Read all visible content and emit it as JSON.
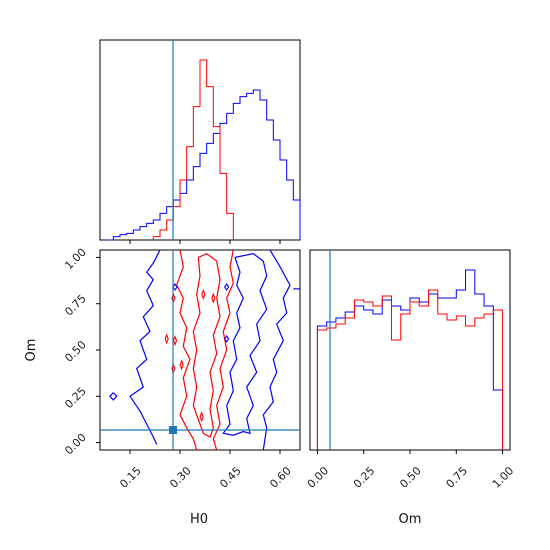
{
  "colors": {
    "series_a": "#0000ff",
    "series_b": "#ff0000",
    "truth": "#1f77b4",
    "axes": "#000000"
  },
  "chart_data": {
    "type": "corner",
    "parameters": [
      "H0",
      "Om"
    ],
    "truths": {
      "H0": 0.28,
      "Om": 0.06
    },
    "series": [
      {
        "color": "#0000ff",
        "H0_hist": {
          "edges": [
            0.08,
            0.1,
            0.12,
            0.14,
            0.16,
            0.18,
            0.2,
            0.22,
            0.24,
            0.26,
            0.28,
            0.3,
            0.32,
            0.34,
            0.36,
            0.38,
            0.4,
            0.42,
            0.44,
            0.46,
            0.48,
            0.5,
            0.52,
            0.54,
            0.56,
            0.58,
            0.6,
            0.62,
            0.64,
            0.66
          ],
          "counts": [
            0,
            0.5,
            0.8,
            1,
            1.5,
            2,
            2.5,
            3,
            4,
            5,
            6,
            7,
            9,
            11,
            13,
            14.5,
            16,
            17.5,
            19,
            20.5,
            21.5,
            22,
            22.5,
            21,
            18,
            15,
            12,
            9,
            6
          ]
        },
        "Om_hist": {
          "edges": [
            0,
            0.05,
            0.1,
            0.15,
            0.2,
            0.25,
            0.3,
            0.35,
            0.4,
            0.45,
            0.5,
            0.55,
            0.6,
            0.65,
            0.7,
            0.75,
            0.8,
            0.85,
            0.9,
            0.95,
            1.0
          ],
          "counts": [
            0.62,
            0.64,
            0.66,
            0.69,
            0.72,
            0.7,
            0.68,
            0.75,
            0.72,
            0.7,
            0.76,
            0.74,
            0.78,
            0.76,
            0.76,
            0.8,
            0.9,
            0.78,
            0.72,
            0.3
          ]
        }
      },
      {
        "color": "#ff0000",
        "H0_hist": {
          "edges": [
            0.22,
            0.24,
            0.26,
            0.28,
            0.3,
            0.32,
            0.34,
            0.36,
            0.38,
            0.4,
            0.42,
            0.44,
            0.46
          ],
          "counts": [
            0.5,
            1.5,
            3,
            5,
            9,
            14,
            20,
            27,
            23,
            17,
            10,
            4
          ]
        },
        "Om_hist": {
          "edges": [
            0,
            0.05,
            0.1,
            0.15,
            0.2,
            0.25,
            0.3,
            0.35,
            0.4,
            0.45,
            0.5,
            0.55,
            0.6,
            0.65,
            0.7,
            0.75,
            0.8,
            0.85,
            0.9,
            0.95,
            1.0
          ],
          "counts": [
            0.6,
            0.61,
            0.63,
            0.66,
            0.75,
            0.74,
            0.72,
            0.77,
            0.55,
            0.68,
            0.74,
            0.72,
            0.8,
            0.68,
            0.65,
            0.67,
            0.62,
            0.66,
            0.68,
            0.7
          ]
        }
      }
    ],
    "H0_ticks": [
      "0.15",
      "0.30",
      "0.45",
      "0.60"
    ],
    "Om_ticks": [
      "0.00",
      "0.25",
      "0.50",
      "0.75",
      "1.00"
    ],
    "xlabels": {
      "H0": "H0",
      "Om": "Om"
    },
    "ylabel": "Om",
    "H0_range": [
      0.06,
      0.66
    ],
    "Om_range": [
      -0.04,
      1.04
    ]
  }
}
